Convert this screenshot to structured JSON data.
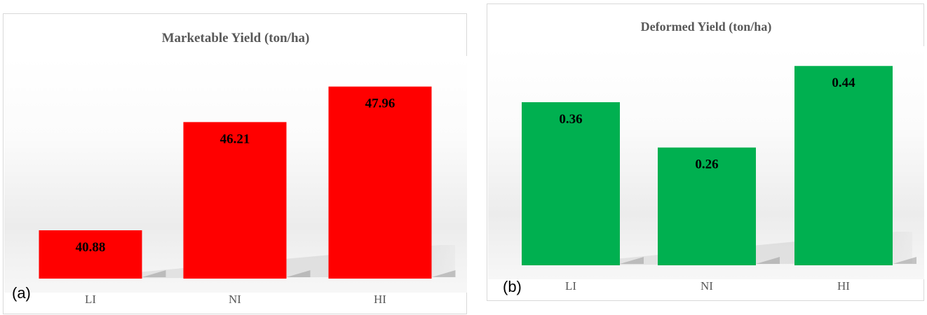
{
  "chart_data": [
    {
      "type": "bar",
      "panel_label": "(a)",
      "title": "Marketable Yield (ton/ha)",
      "categories": [
        "LI",
        "NI",
        "HI"
      ],
      "values": [
        40.88,
        46.21,
        47.96
      ],
      "data_labels": [
        "40.88",
        "46.21",
        "47.96"
      ],
      "bar_color": "#ff0000",
      "ylim": [
        38.5,
        50.5
      ],
      "grid": false,
      "legend": "none"
    },
    {
      "type": "bar",
      "panel_label": "(b)",
      "title": "Deformed Yield (ton/ha)",
      "categories": [
        "LI",
        "NI",
        "HI"
      ],
      "values": [
        0.36,
        0.26,
        0.44
      ],
      "data_labels": [
        "0.36",
        "0.26",
        "0.44"
      ],
      "bar_color": "#00b050",
      "ylim": [
        0.0,
        0.53
      ],
      "grid": false,
      "legend": "none"
    }
  ]
}
